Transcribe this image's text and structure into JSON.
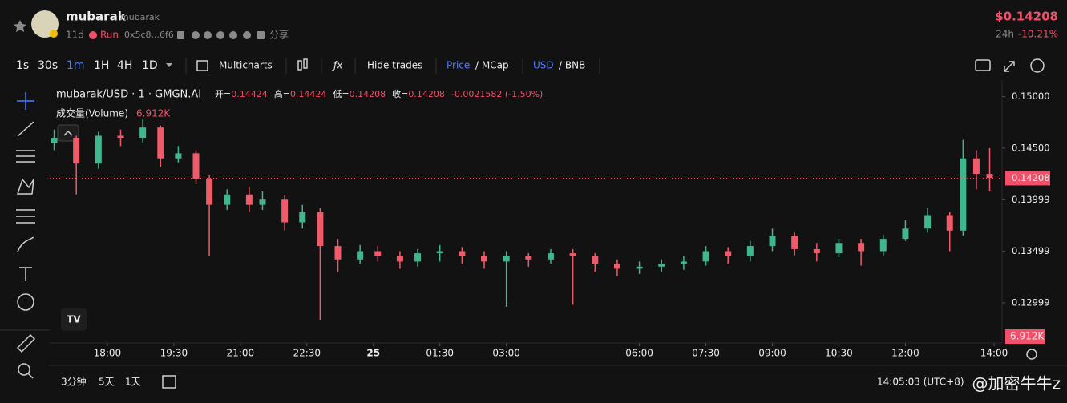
{
  "header": {
    "name": "mubarak",
    "handle": "mubarak",
    "age": "11d",
    "tag": "Run",
    "address": "0x5c8...6f6",
    "share": "分享",
    "price": "$0.14208",
    "period": "24h",
    "change": "-10.21%"
  },
  "toolbar": {
    "intervals": [
      "1s",
      "30s",
      "1m",
      "1H",
      "4H",
      "1D"
    ],
    "multicharts": "Multicharts",
    "hide_trades": "Hide trades",
    "price": "Price",
    "mcap": "/ MCap",
    "usd": "USD",
    "bnb": "/ BNB"
  },
  "legend": {
    "symbol": "mubarak/USD · 1 · GMGN.AI",
    "open_label": "开=",
    "open": "0.14424",
    "high_label": "高=",
    "high": "0.14424",
    "low_label": "低=",
    "low": "0.14208",
    "close_label": "收=",
    "close": "0.14208",
    "change": "-0.0021582 (-1.50%)",
    "volume_label": "成交量(Volume)",
    "volume": "6.912K"
  },
  "chart_data": {
    "type": "candlestick",
    "up_color": "#3fb68b",
    "down_color": "#ef5b6b",
    "x": [
      16.8,
      17.3,
      17.8,
      18.3,
      18.8,
      19.2,
      19.6,
      20.0,
      20.3,
      20.7,
      21.2,
      21.5,
      22.0,
      22.4,
      22.8,
      23.2,
      23.7,
      24.1,
      24.6,
      25.0,
      25.5,
      26.0,
      26.5,
      27.0,
      27.5,
      28.0,
      28.5,
      29.0,
      29.5,
      30.0,
      30.5,
      31.0,
      31.5,
      32.0,
      32.5,
      33.0,
      33.5,
      34.0,
      34.5,
      35.0,
      35.5,
      36.0,
      36.5,
      37.0,
      37.3,
      37.6,
      37.9
    ],
    "open": [
      0.1455,
      0.146,
      0.1435,
      0.1462,
      0.146,
      0.147,
      0.144,
      0.1445,
      0.142,
      0.1395,
      0.1405,
      0.1395,
      0.14,
      0.1378,
      0.1388,
      0.1355,
      0.1342,
      0.135,
      0.1345,
      0.134,
      0.1348,
      0.135,
      0.1345,
      0.134,
      0.1345,
      0.1342,
      0.1348,
      0.1345,
      0.1338,
      0.1333,
      0.1335,
      0.1338,
      0.134,
      0.135,
      0.1345,
      0.1355,
      0.1365,
      0.1352,
      0.1348,
      0.1358,
      0.135,
      0.1362,
      0.1372,
      0.1385,
      0.137,
      0.144,
      0.1425
    ],
    "high": [
      0.1468,
      0.1462,
      0.1466,
      0.1468,
      0.1478,
      0.1472,
      0.1452,
      0.1448,
      0.1424,
      0.141,
      0.1412,
      0.1408,
      0.1404,
      0.1395,
      0.1392,
      0.1362,
      0.1356,
      0.1355,
      0.135,
      0.1352,
      0.1356,
      0.1354,
      0.135,
      0.135,
      0.1348,
      0.1352,
      0.1352,
      0.1348,
      0.1342,
      0.134,
      0.1342,
      0.1345,
      0.1355,
      0.1354,
      0.136,
      0.1372,
      0.1368,
      0.1358,
      0.1362,
      0.1362,
      0.1366,
      0.138,
      0.1392,
      0.1388,
      0.1458,
      0.1448,
      0.145
    ],
    "low": [
      0.1448,
      0.1405,
      0.143,
      0.1452,
      0.1455,
      0.1432,
      0.1436,
      0.1415,
      0.1345,
      0.139,
      0.1388,
      0.139,
      0.137,
      0.1372,
      0.1283,
      0.133,
      0.1338,
      0.134,
      0.1333,
      0.1335,
      0.134,
      0.1338,
      0.1333,
      0.1296,
      0.1335,
      0.1338,
      0.1298,
      0.133,
      0.1326,
      0.1328,
      0.133,
      0.1332,
      0.1336,
      0.1338,
      0.134,
      0.135,
      0.1346,
      0.134,
      0.1344,
      0.1336,
      0.1345,
      0.136,
      0.1368,
      0.135,
      0.1365,
      0.141,
      0.1408
    ],
    "close": [
      0.146,
      0.1435,
      0.1462,
      0.146,
      0.147,
      0.144,
      0.1445,
      0.142,
      0.1395,
      0.1405,
      0.1395,
      0.14,
      0.1378,
      0.1388,
      0.1355,
      0.1342,
      0.135,
      0.1345,
      0.134,
      0.1348,
      0.135,
      0.1345,
      0.134,
      0.1345,
      0.1342,
      0.1348,
      0.1345,
      0.1338,
      0.1333,
      0.1335,
      0.1338,
      0.134,
      0.135,
      0.1345,
      0.1355,
      0.1365,
      0.1352,
      0.1348,
      0.1358,
      0.135,
      0.1362,
      0.1372,
      0.1385,
      0.137,
      0.144,
      0.1425,
      0.1421
    ],
    "xlim": [
      16.7,
      38.18
    ],
    "ylim": [
      0.1261,
      0.1516
    ],
    "xticks": [
      {
        "value": 18,
        "label": "18:00"
      },
      {
        "value": 19.5,
        "label": "19:30"
      },
      {
        "value": 21,
        "label": "21:00"
      },
      {
        "value": 22.5,
        "label": "22:30"
      },
      {
        "value": 24,
        "label": "25"
      },
      {
        "value": 25.5,
        "label": "01:30"
      },
      {
        "value": 27,
        "label": "03:00"
      },
      {
        "value": 30,
        "label": "06:00"
      },
      {
        "value": 31.5,
        "label": "07:30"
      },
      {
        "value": 33,
        "label": "09:00"
      },
      {
        "value": 34.5,
        "label": "10:30"
      },
      {
        "value": 36,
        "label": "12:00"
      },
      {
        "value": 38,
        "label": "14:00"
      }
    ],
    "yticks": [
      {
        "value": 0.15,
        "label": "0.15000"
      },
      {
        "value": 0.145,
        "label": "0.14500"
      },
      0.13999,
      0.13499,
      0.12999
    ],
    "current_price": 0.14208,
    "grid": false
  },
  "footer": {
    "ranges": [
      "3分钟",
      "5天",
      "1天"
    ],
    "time": "14:05:03 (UTC+8)",
    "watermark": "@加密牛牛z"
  }
}
